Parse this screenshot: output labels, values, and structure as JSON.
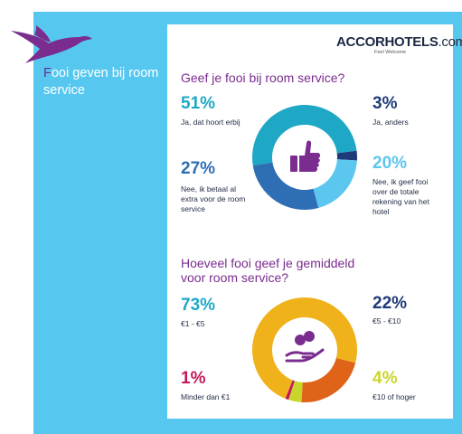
{
  "sidebar": {
    "title_first_letter": "F",
    "title_rest": "ooi geven bij room service"
  },
  "logo": {
    "name": "ACCORHOTELS",
    "suffix": ".com",
    "tagline": "Feel Welcome"
  },
  "colors": {
    "panel": "#56c8f0",
    "purple": "#7b2c8f",
    "navy": "#1f2a44"
  },
  "chart_data": [
    {
      "type": "pie",
      "title": "Geef je fooi bij room service?",
      "center_icon": "thumbs-up-icon",
      "slices": [
        {
          "value": 51,
          "label": "51%",
          "name": "Ja, dat hoort erbij",
          "color": "#1ea8c6"
        },
        {
          "value": 3,
          "label": "3%",
          "name": "Ja, anders",
          "color": "#1f3a78"
        },
        {
          "value": 20,
          "label": "20%",
          "name": "Nee, ik geef fooi over de totale rekening van het hotel",
          "color": "#5bc6ee"
        },
        {
          "value": 27,
          "label": "27%",
          "name": "Nee, ik betaal al extra voor de room service",
          "color": "#2e6eb5"
        }
      ]
    },
    {
      "type": "pie",
      "title": "Hoeveel fooi geef je gemiddeld voor room service?",
      "center_icon": "coins-in-hand-icon",
      "slices": [
        {
          "value": 73,
          "label": "73%",
          "name": "€1 - €5",
          "color": "#f0b21b"
        },
        {
          "value": 22,
          "label": "22%",
          "name": "€5 - €10",
          "color": "#e0631a"
        },
        {
          "value": 4,
          "label": "4%",
          "name": "€10 of hoger",
          "color": "#c8d62a"
        },
        {
          "value": 1,
          "label": "1%",
          "name": "Minder dan €1",
          "color": "#c2185b"
        }
      ]
    }
  ]
}
